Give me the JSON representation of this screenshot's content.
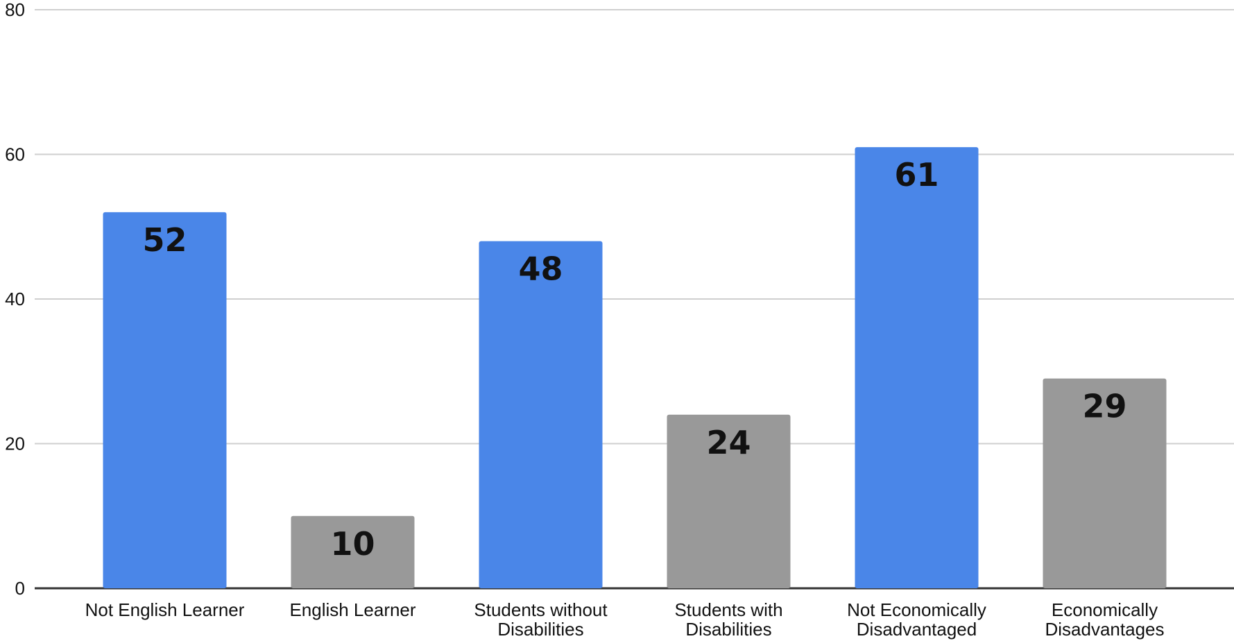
{
  "chart_data": {
    "type": "bar",
    "title": "",
    "xlabel": "",
    "ylabel": "",
    "ylim": [
      0,
      80
    ],
    "yticks": [
      0,
      20,
      40,
      60,
      80
    ],
    "grid": true,
    "legend": "none",
    "categories": [
      [
        "Not English Learner"
      ],
      [
        "English Learner"
      ],
      [
        "Students without",
        "Disabilities"
      ],
      [
        "Students with",
        "Disabilities"
      ],
      [
        "Not Economically",
        "Disadvantaged"
      ],
      [
        "Economically",
        "Disadvantages"
      ]
    ],
    "values": [
      52,
      10,
      48,
      24,
      61,
      29
    ],
    "data_labels": [
      "52",
      "10",
      "48",
      "24",
      "61",
      "29"
    ],
    "bar_colors": [
      "#4a86e8",
      "#999999",
      "#4a86e8",
      "#999999",
      "#4a86e8",
      "#999999"
    ]
  }
}
